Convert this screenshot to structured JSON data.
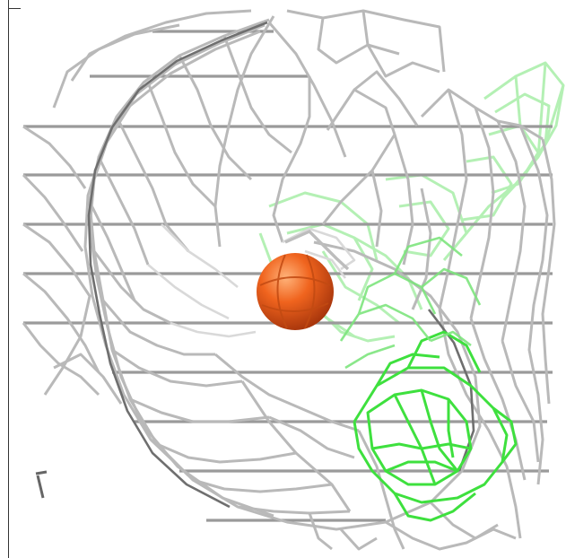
{
  "scene": {
    "background_color": "#ffffff",
    "mesh_color": "#b8b8b8",
    "mesh_dark_color": "#7a7a7a",
    "green_mesh_color": "#3de83d",
    "green_mesh_light_color": "#a8f0a8",
    "ball_color": "#f0641e",
    "ball_dark_color": "#c44512"
  }
}
